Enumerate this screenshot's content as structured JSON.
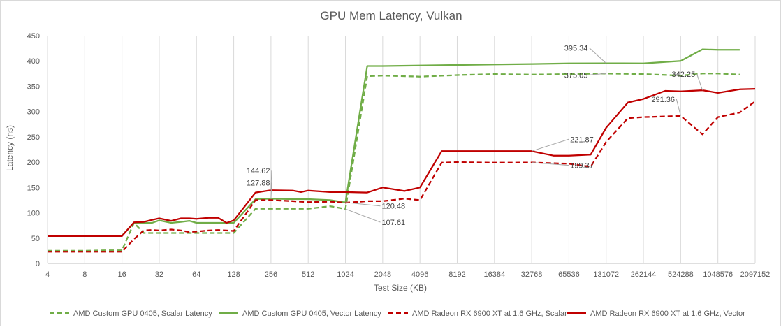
{
  "chart_data": {
    "type": "line",
    "title": "GPU Mem Latency, Vulkan",
    "xlabel": "Test Size (KB)",
    "ylabel": "Latency (ns)",
    "ylim": [
      0,
      450
    ],
    "y_ticks": [
      0,
      50,
      100,
      150,
      200,
      250,
      300,
      350,
      400,
      450
    ],
    "x_scale": "log2",
    "x_ticks": [
      4,
      8,
      16,
      32,
      64,
      128,
      256,
      512,
      1024,
      2048,
      4096,
      8192,
      16384,
      32768,
      65536,
      131072,
      262144,
      524288,
      1048576,
      2097152
    ],
    "x_tick_labels": [
      "4",
      "8",
      "16",
      "32",
      "64",
      "128",
      "256",
      "512",
      "1024",
      "2048",
      "4096",
      "8192",
      "16384",
      "32768",
      "65536",
      "131072",
      "262144",
      "524288",
      "1048576",
      "2097152"
    ],
    "xlim": [
      4,
      2097152
    ],
    "grid": "vertical",
    "legend_position": "bottom",
    "series": [
      {
        "name": "AMD Custom GPU 0405, Scalar Latency",
        "color": "#70ad47",
        "dash": true,
        "points": [
          [
            4,
            25
          ],
          [
            8,
            25
          ],
          [
            12,
            26
          ],
          [
            16,
            26
          ],
          [
            20,
            80
          ],
          [
            24,
            60
          ],
          [
            28,
            60
          ],
          [
            32,
            60
          ],
          [
            40,
            60
          ],
          [
            48,
            60
          ],
          [
            56,
            60
          ],
          [
            64,
            60
          ],
          [
            80,
            60
          ],
          [
            96,
            60
          ],
          [
            112,
            60
          ],
          [
            128,
            60
          ],
          [
            192,
            108
          ],
          [
            256,
            108
          ],
          [
            384,
            108
          ],
          [
            512,
            108
          ],
          [
            768,
            113
          ],
          [
            1024,
            107.61
          ],
          [
            1536,
            370
          ],
          [
            2048,
            371
          ],
          [
            4096,
            369
          ],
          [
            8192,
            372
          ],
          [
            16384,
            374
          ],
          [
            32768,
            373
          ],
          [
            65536,
            374
          ],
          [
            131072,
            375.05
          ],
          [
            262144,
            374
          ],
          [
            524288,
            371
          ],
          [
            786432,
            375
          ],
          [
            1048576,
            375
          ],
          [
            1572864,
            373
          ]
        ]
      },
      {
        "name": "AMD Custom GPU 0405, Vector Latency",
        "color": "#70ad47",
        "dash": false,
        "points": [
          [
            4,
            55
          ],
          [
            8,
            55
          ],
          [
            12,
            55
          ],
          [
            16,
            55
          ],
          [
            20,
            80
          ],
          [
            24,
            80
          ],
          [
            28,
            80
          ],
          [
            32,
            85
          ],
          [
            40,
            80
          ],
          [
            48,
            82
          ],
          [
            56,
            84
          ],
          [
            64,
            80
          ],
          [
            80,
            80
          ],
          [
            96,
            80
          ],
          [
            112,
            80
          ],
          [
            128,
            80
          ],
          [
            192,
            127
          ],
          [
            256,
            127.88
          ],
          [
            384,
            127
          ],
          [
            512,
            127
          ],
          [
            768,
            125
          ],
          [
            1024,
            120.48
          ],
          [
            1536,
            390
          ],
          [
            2048,
            390
          ],
          [
            4096,
            391
          ],
          [
            8192,
            392
          ],
          [
            16384,
            393
          ],
          [
            32768,
            394
          ],
          [
            65536,
            395
          ],
          [
            131072,
            395.34
          ],
          [
            262144,
            395
          ],
          [
            524288,
            400
          ],
          [
            786432,
            423
          ],
          [
            1048576,
            422
          ],
          [
            1572864,
            422
          ]
        ]
      },
      {
        "name": "AMD Radeon RX 6900 XT at 1.6 GHz, Scalar",
        "color": "#c00000",
        "dash": true,
        "points": [
          [
            4,
            23
          ],
          [
            8,
            23
          ],
          [
            12,
            23
          ],
          [
            16,
            23
          ],
          [
            20,
            48
          ],
          [
            24,
            65
          ],
          [
            28,
            66
          ],
          [
            32,
            65
          ],
          [
            40,
            67
          ],
          [
            48,
            65
          ],
          [
            56,
            62
          ],
          [
            64,
            63
          ],
          [
            80,
            65
          ],
          [
            96,
            66
          ],
          [
            112,
            65
          ],
          [
            128,
            64
          ],
          [
            192,
            125
          ],
          [
            256,
            125
          ],
          [
            384,
            123
          ],
          [
            512,
            121
          ],
          [
            768,
            122
          ],
          [
            1024,
            120
          ],
          [
            1536,
            123
          ],
          [
            2048,
            123
          ],
          [
            3072,
            128
          ],
          [
            4096,
            125
          ],
          [
            6144,
            199
          ],
          [
            8192,
            200
          ],
          [
            16384,
            199
          ],
          [
            32768,
            199.37
          ],
          [
            49152,
            198
          ],
          [
            65536,
            197
          ],
          [
            98304,
            191
          ],
          [
            131072,
            240
          ],
          [
            196608,
            287
          ],
          [
            262144,
            289
          ],
          [
            524288,
            291.36
          ],
          [
            786432,
            255
          ],
          [
            1048576,
            289
          ],
          [
            1572864,
            298
          ],
          [
            2097152,
            320
          ]
        ]
      },
      {
        "name": "AMD Radeon RX 6900 XT at 1.6 GHz, Vector",
        "color": "#c00000",
        "dash": false,
        "points": [
          [
            4,
            54
          ],
          [
            8,
            54
          ],
          [
            12,
            54
          ],
          [
            16,
            54
          ],
          [
            20,
            81
          ],
          [
            24,
            82
          ],
          [
            28,
            86
          ],
          [
            32,
            89
          ],
          [
            40,
            84
          ],
          [
            48,
            89
          ],
          [
            56,
            89
          ],
          [
            64,
            88
          ],
          [
            80,
            90
          ],
          [
            96,
            90
          ],
          [
            112,
            80
          ],
          [
            128,
            85
          ],
          [
            192,
            140
          ],
          [
            256,
            144.62
          ],
          [
            384,
            144
          ],
          [
            448,
            141
          ],
          [
            512,
            144
          ],
          [
            768,
            141
          ],
          [
            1024,
            141
          ],
          [
            1536,
            140
          ],
          [
            2048,
            150
          ],
          [
            3072,
            143
          ],
          [
            4096,
            150
          ],
          [
            6144,
            222
          ],
          [
            8192,
            222
          ],
          [
            16384,
            222
          ],
          [
            32768,
            221.87
          ],
          [
            49152,
            213
          ],
          [
            65536,
            213
          ],
          [
            98304,
            215
          ],
          [
            131072,
            268
          ],
          [
            196608,
            318
          ],
          [
            262144,
            325
          ],
          [
            393216,
            341
          ],
          [
            524288,
            340
          ],
          [
            786432,
            342.25
          ],
          [
            1048576,
            337
          ],
          [
            1572864,
            344
          ],
          [
            2097152,
            345
          ]
        ]
      }
    ],
    "annotations": [
      {
        "text": "144.62",
        "x": 256,
        "y": 144.62
      },
      {
        "text": "127.88",
        "x": 256,
        "y": 127.88
      },
      {
        "text": "120.48",
        "x": 1024,
        "y": 120.48
      },
      {
        "text": "107.61",
        "x": 1024,
        "y": 107.61
      },
      {
        "text": "221.87",
        "x": 32768,
        "y": 221.87
      },
      {
        "text": "199.37",
        "x": 32768,
        "y": 199.37
      },
      {
        "text": "395.34",
        "x": 131072,
        "y": 395.34
      },
      {
        "text": "375.05",
        "x": 131072,
        "y": 375.05
      },
      {
        "text": "342.25",
        "x": 786432,
        "y": 342.25
      },
      {
        "text": "291.36",
        "x": 524288,
        "y": 291.36
      }
    ]
  }
}
